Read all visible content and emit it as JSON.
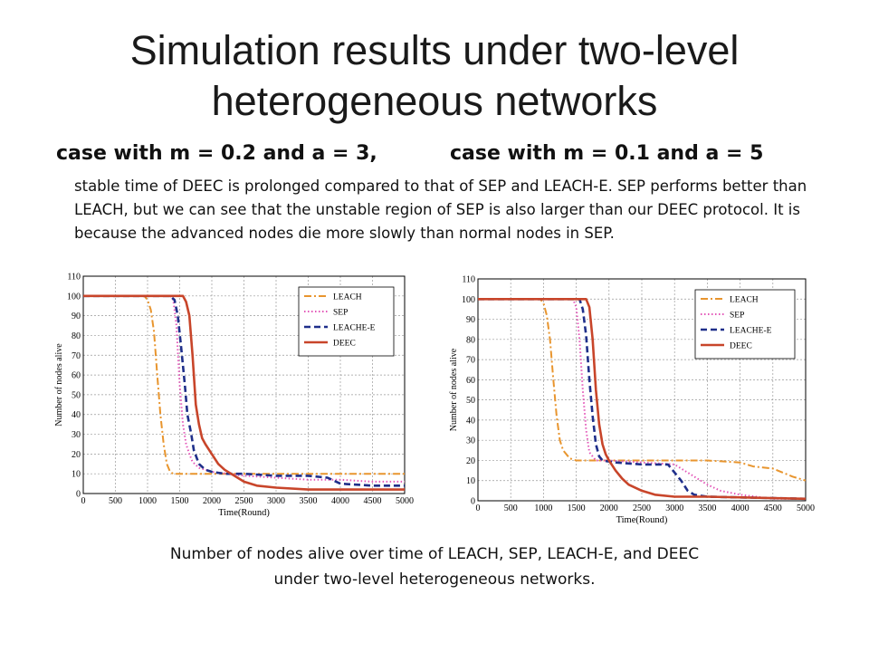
{
  "slide": {
    "title_line1": "Simulation results under two-level",
    "title_line2": "heterogeneous networks",
    "case_left": "case with m = 0.2 and a = 3,",
    "case_right": "case with m = 0.1 and a = 5",
    "description": "stable time of DEEC is prolonged compared to that of SEP and LEACH-E. SEP performs better than LEACH, but we can see that the unstable region of SEP is also larger than our DEEC protocol. It is because the advanced nodes die more slowly than normal nodes in SEP.",
    "caption_line1": "Number of nodes alive over time of LEACH, SEP, LEACH-E, and DEEC",
    "caption_line2": "under two-level heterogeneous networks."
  },
  "colors": {
    "LEACH": "#e8952e",
    "SEP": "#e356b8",
    "LEACHE-E": "#1f2f8a",
    "DEEC": "#c8452a"
  },
  "chart_data": [
    {
      "type": "line",
      "xlabel": "Time(Round)",
      "ylabel": "Number of nodes alive",
      "xlim": [
        0,
        5000
      ],
      "ylim": [
        0,
        110
      ],
      "xticks": [
        0,
        500,
        1000,
        1500,
        2000,
        2500,
        3000,
        3500,
        4000,
        4500,
        5000
      ],
      "yticks": [
        0,
        10,
        20,
        30,
        40,
        50,
        60,
        70,
        80,
        90,
        100,
        110
      ],
      "grid": true,
      "legend_position": "top-right",
      "series": [
        {
          "name": "LEACH",
          "style": "dashdot",
          "points": [
            [
              0,
              100
            ],
            [
              950,
              100
            ],
            [
              1000,
              98
            ],
            [
              1050,
              93
            ],
            [
              1100,
              82
            ],
            [
              1150,
              60
            ],
            [
              1200,
              40
            ],
            [
              1250,
              25
            ],
            [
              1300,
              15
            ],
            [
              1350,
              11
            ],
            [
              1400,
              10
            ],
            [
              2000,
              10
            ],
            [
              3000,
              10
            ],
            [
              4000,
              10
            ],
            [
              5000,
              10
            ]
          ]
        },
        {
          "name": "SEP",
          "style": "dotted",
          "points": [
            [
              0,
              100
            ],
            [
              1350,
              100
            ],
            [
              1400,
              98
            ],
            [
              1450,
              85
            ],
            [
              1500,
              55
            ],
            [
              1550,
              35
            ],
            [
              1600,
              25
            ],
            [
              1650,
              20
            ],
            [
              1700,
              16
            ],
            [
              1800,
              13
            ],
            [
              2000,
              11
            ],
            [
              2500,
              9
            ],
            [
              3000,
              8
            ],
            [
              3500,
              7
            ],
            [
              4000,
              7
            ],
            [
              4500,
              6
            ],
            [
              5000,
              6
            ]
          ]
        },
        {
          "name": "LEACHE-E",
          "style": "dashed",
          "points": [
            [
              0,
              100
            ],
            [
              1350,
              100
            ],
            [
              1420,
              98
            ],
            [
              1470,
              90
            ],
            [
              1520,
              75
            ],
            [
              1580,
              55
            ],
            [
              1620,
              40
            ],
            [
              1680,
              30
            ],
            [
              1720,
              22
            ],
            [
              1800,
              15
            ],
            [
              1900,
              12
            ],
            [
              2000,
              11
            ],
            [
              2200,
              10
            ],
            [
              2500,
              10
            ],
            [
              3000,
              9
            ],
            [
              3500,
              9
            ],
            [
              3800,
              8
            ],
            [
              4000,
              5
            ],
            [
              4500,
              4
            ],
            [
              5000,
              4
            ]
          ]
        },
        {
          "name": "DEEC",
          "style": "solid",
          "points": [
            [
              0,
              100
            ],
            [
              1550,
              100
            ],
            [
              1600,
              97
            ],
            [
              1650,
              90
            ],
            [
              1700,
              70
            ],
            [
              1750,
              45
            ],
            [
              1800,
              35
            ],
            [
              1850,
              28
            ],
            [
              1900,
              25
            ],
            [
              2000,
              20
            ],
            [
              2100,
              15
            ],
            [
              2200,
              12
            ],
            [
              2300,
              10
            ],
            [
              2400,
              8
            ],
            [
              2500,
              6
            ],
            [
              2700,
              4
            ],
            [
              3000,
              3
            ],
            [
              3500,
              2
            ],
            [
              4000,
              2
            ],
            [
              5000,
              2
            ]
          ]
        }
      ]
    },
    {
      "type": "line",
      "xlabel": "Time(Round)",
      "ylabel": "Number of nodes alive",
      "xlim": [
        0,
        5000
      ],
      "ylim": [
        0,
        110
      ],
      "xticks": [
        0,
        500,
        1000,
        1500,
        2000,
        2500,
        3000,
        3500,
        4000,
        4500,
        5000
      ],
      "yticks": [
        0,
        10,
        20,
        30,
        40,
        50,
        60,
        70,
        80,
        90,
        100,
        110
      ],
      "grid": true,
      "legend_position": "top-right",
      "series": [
        {
          "name": "LEACH",
          "style": "dashdot",
          "points": [
            [
              0,
              100
            ],
            [
              950,
              100
            ],
            [
              1000,
              98
            ],
            [
              1050,
              92
            ],
            [
              1100,
              80
            ],
            [
              1150,
              60
            ],
            [
              1200,
              42
            ],
            [
              1250,
              30
            ],
            [
              1300,
              25
            ],
            [
              1400,
              21
            ],
            [
              1500,
              20
            ],
            [
              2000,
              20
            ],
            [
              3000,
              20
            ],
            [
              3500,
              20
            ],
            [
              4000,
              19
            ],
            [
              4200,
              17
            ],
            [
              4500,
              16
            ],
            [
              4800,
              12
            ],
            [
              5000,
              10
            ]
          ]
        },
        {
          "name": "SEP",
          "style": "dotted",
          "points": [
            [
              0,
              100
            ],
            [
              1450,
              100
            ],
            [
              1500,
              96
            ],
            [
              1550,
              80
            ],
            [
              1600,
              55
            ],
            [
              1650,
              35
            ],
            [
              1700,
              24
            ],
            [
              1800,
              20
            ],
            [
              2000,
              20
            ],
            [
              2500,
              19
            ],
            [
              3000,
              18
            ],
            [
              3300,
              12
            ],
            [
              3500,
              8
            ],
            [
              3700,
              5
            ],
            [
              4000,
              3
            ],
            [
              4500,
              1
            ],
            [
              5000,
              1
            ]
          ]
        },
        {
          "name": "LEACHE-E",
          "style": "dashed",
          "points": [
            [
              0,
              100
            ],
            [
              1550,
              100
            ],
            [
              1600,
              95
            ],
            [
              1650,
              82
            ],
            [
              1700,
              60
            ],
            [
              1750,
              42
            ],
            [
              1800,
              28
            ],
            [
              1850,
              22
            ],
            [
              1900,
              20
            ],
            [
              2100,
              19
            ],
            [
              2500,
              18
            ],
            [
              2900,
              18
            ],
            [
              3000,
              14
            ],
            [
              3100,
              10
            ],
            [
              3200,
              5
            ],
            [
              3300,
              3
            ],
            [
              3500,
              2
            ],
            [
              5000,
              1
            ]
          ]
        },
        {
          "name": "DEEC",
          "style": "solid",
          "points": [
            [
              0,
              100
            ],
            [
              1650,
              100
            ],
            [
              1700,
              96
            ],
            [
              1750,
              80
            ],
            [
              1800,
              55
            ],
            [
              1850,
              38
            ],
            [
              1900,
              28
            ],
            [
              1950,
              23
            ],
            [
              2000,
              20
            ],
            [
              2100,
              15
            ],
            [
              2200,
              11
            ],
            [
              2300,
              8
            ],
            [
              2500,
              5
            ],
            [
              2700,
              3
            ],
            [
              3000,
              2
            ],
            [
              3500,
              2
            ],
            [
              5000,
              1
            ]
          ]
        }
      ]
    }
  ]
}
